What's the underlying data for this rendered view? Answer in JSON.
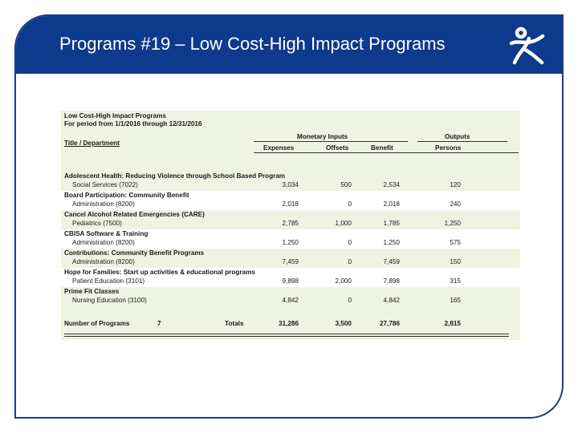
{
  "header": {
    "title": "Programs #19 – Low Cost-High Impact Programs",
    "logo_icon": "figure-logo-icon",
    "color": "#0d3a8c"
  },
  "report": {
    "title": "Low Cost-High Impact Programs",
    "period": "For period from 1/1/2016 through 12/31/2016",
    "group_monetary": "Monetary Inputs",
    "group_outputs": "Outputs",
    "col_title": "Title / Department",
    "col_expenses": "Expenses",
    "col_offsets": "Offsets",
    "col_benefit": "Benefit",
    "col_persons": "Persons",
    "rows": [
      {
        "title": "Adolescent Health: Reducing Violence through School Based Program",
        "dept": "Social Services (7022)",
        "expenses": "3,034",
        "offsets": "500",
        "benefit": "2,534",
        "persons": "120"
      },
      {
        "title": "Board Participation: Community Benefit",
        "dept": "Administration (8200)",
        "expenses": "2,018",
        "offsets": "0",
        "benefit": "2,018",
        "persons": "240"
      },
      {
        "title": "Cancel Alcohol Related Emergencies (CARE)",
        "dept": "Pediatrics (7500)",
        "expenses": "2,785",
        "offsets": "1,000",
        "benefit": "1,785",
        "persons": "1,250"
      },
      {
        "title": "CBISA Software & Training",
        "dept": "Administration (8200)",
        "expenses": "1,250",
        "offsets": "0",
        "benefit": "1,250",
        "persons": "575"
      },
      {
        "title": "Contributions: Community Benefit Programs",
        "dept": "Administration (8200)",
        "expenses": "7,459",
        "offsets": "0",
        "benefit": "7,459",
        "persons": "150"
      },
      {
        "title": "Hope for Families: Start up activities & educational programs",
        "dept": "Patient Education (3101)",
        "expenses": "9,898",
        "offsets": "2,000",
        "benefit": "7,898",
        "persons": "315"
      },
      {
        "title": "Prime Fit Classes",
        "dept": "Nursing Education (3100)",
        "expenses": "4,842",
        "offsets": "0",
        "benefit": "4,842",
        "persons": "165"
      }
    ],
    "footer": {
      "label": "Number of Programs",
      "count": "7",
      "totals_label": "Totals",
      "expenses": "31,286",
      "offsets": "3,500",
      "benefit": "27,786",
      "persons": "2,815"
    }
  }
}
